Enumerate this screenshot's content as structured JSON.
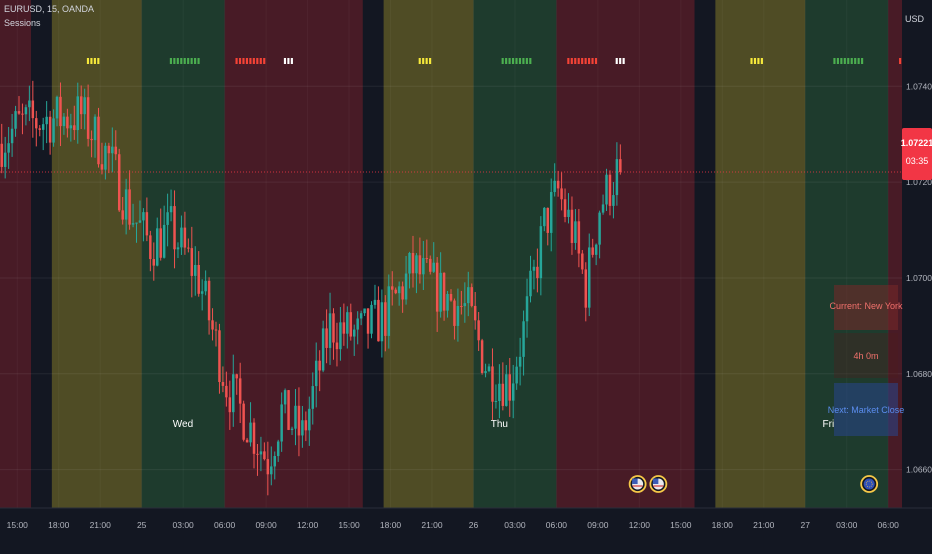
{
  "header": {
    "symbol_line": "EURUSD, 15, OANDA",
    "indicator": "Sessions"
  },
  "axis": {
    "currency": "USD"
  },
  "price_label": {
    "price": "1.07221",
    "countdown": "03:35"
  },
  "session_info": {
    "current": "Current: New York",
    "remaining": "4h 0m",
    "next": "Next: Market Close"
  },
  "day_labels": [
    {
      "text": "Wed"
    },
    {
      "text": "Thu"
    },
    {
      "text": "Fri"
    }
  ],
  "colors": {
    "background": "#131722",
    "bull": "#26a69a",
    "bear": "#ef5350",
    "asia": "#f7e93b",
    "london": "#4caf50",
    "newyork": "#f44336",
    "close": "#ffffff"
  },
  "chart_data": {
    "type": "candlestick",
    "ylim": [
      1.0652,
      1.0758
    ],
    "yticks": [
      {
        "value": 1.074,
        "label": "1.07400"
      },
      {
        "value": 1.072,
        "label": "1.07200"
      },
      {
        "value": 1.07,
        "label": "1.07000"
      },
      {
        "value": 1.068,
        "label": "1.06800"
      },
      {
        "value": 1.066,
        "label": "1.06600"
      }
    ],
    "xticks": [
      {
        "t": 3,
        "label": "15:00"
      },
      {
        "t": 15,
        "label": "18:00"
      },
      {
        "t": 27,
        "label": "21:00"
      },
      {
        "t": 39,
        "label": "25"
      },
      {
        "t": 51,
        "label": "03:00"
      },
      {
        "t": 63,
        "label": "06:00"
      },
      {
        "t": 75,
        "label": "09:00"
      },
      {
        "t": 87,
        "label": "12:00"
      },
      {
        "t": 99,
        "label": "15:00"
      },
      {
        "t": 111,
        "label": "18:00"
      },
      {
        "t": 123,
        "label": "21:00"
      },
      {
        "t": 135,
        "label": "26"
      },
      {
        "t": 147,
        "label": "03:00"
      },
      {
        "t": 159,
        "label": "06:00"
      },
      {
        "t": 171,
        "label": "09:00"
      },
      {
        "t": 183,
        "label": "12:00"
      },
      {
        "t": 195,
        "label": "15:00"
      },
      {
        "t": 207,
        "label": "18:00"
      },
      {
        "t": 219,
        "label": "21:00"
      },
      {
        "t": 231,
        "label": "27"
      },
      {
        "t": 243,
        "label": "03:00"
      },
      {
        "t": 255,
        "label": "06:00"
      }
    ],
    "time_range": [
      -2,
      259
    ],
    "sessions": [
      {
        "name": "newyork",
        "start": -2,
        "end": 7
      },
      {
        "name": "close",
        "start": 7,
        "end": 13
      },
      {
        "name": "asia",
        "start": 13,
        "end": 39
      },
      {
        "name": "london",
        "start": 39,
        "end": 63
      },
      {
        "name": "newyork",
        "start": 63,
        "end": 103
      },
      {
        "name": "close",
        "start": 103,
        "end": 109
      },
      {
        "name": "asia",
        "start": 109,
        "end": 135
      },
      {
        "name": "london",
        "start": 135,
        "end": 159
      },
      {
        "name": "newyork",
        "start": 159,
        "end": 199
      },
      {
        "name": "close",
        "start": 199,
        "end": 205
      },
      {
        "name": "asia",
        "start": 205,
        "end": 231
      },
      {
        "name": "london",
        "start": 231,
        "end": 255
      },
      {
        "name": "newyork",
        "start": 255,
        "end": 259
      }
    ],
    "waypoints": [
      {
        "t": -2,
        "p": 1.0728
      },
      {
        "t": 4,
        "p": 1.0732
      },
      {
        "t": 12,
        "p": 1.0733
      },
      {
        "t": 22,
        "p": 1.0734
      },
      {
        "t": 30,
        "p": 1.0725
      },
      {
        "t": 36,
        "p": 1.0714
      },
      {
        "t": 42,
        "p": 1.0707
      },
      {
        "t": 48,
        "p": 1.071
      },
      {
        "t": 56,
        "p": 1.07
      },
      {
        "t": 64,
        "p": 1.0678
      },
      {
        "t": 70,
        "p": 1.067
      },
      {
        "t": 76,
        "p": 1.0662
      },
      {
        "t": 80,
        "p": 1.0672
      },
      {
        "t": 86,
        "p": 1.0667
      },
      {
        "t": 94,
        "p": 1.069
      },
      {
        "t": 102,
        "p": 1.0688
      },
      {
        "t": 110,
        "p": 1.0692
      },
      {
        "t": 118,
        "p": 1.0702
      },
      {
        "t": 126,
        "p": 1.0697
      },
      {
        "t": 134,
        "p": 1.0693
      },
      {
        "t": 140,
        "p": 1.068
      },
      {
        "t": 146,
        "p": 1.0678
      },
      {
        "t": 150,
        "p": 1.0689
      },
      {
        "t": 156,
        "p": 1.0711
      },
      {
        "t": 160,
        "p": 1.0718
      },
      {
        "t": 164,
        "p": 1.071
      },
      {
        "t": 168,
        "p": 1.0698
      },
      {
        "t": 172,
        "p": 1.0715
      },
      {
        "t": 177,
        "p": 1.0722
      }
    ],
    "last_price": 1.07221,
    "session_markers": [
      {
        "session": "asia",
        "start": 23,
        "end": 27
      },
      {
        "session": "london",
        "start": 47,
        "end": 56
      },
      {
        "session": "newyork",
        "start": 66,
        "end": 75
      },
      {
        "session": "close",
        "start": 80,
        "end": 83
      },
      {
        "session": "asia",
        "start": 119,
        "end": 123
      },
      {
        "session": "london",
        "start": 143,
        "end": 152
      },
      {
        "session": "newyork",
        "start": 162,
        "end": 171
      },
      {
        "session": "close",
        "start": 176,
        "end": 179
      },
      {
        "session": "asia",
        "start": 215,
        "end": 219
      },
      {
        "session": "london",
        "start": 239,
        "end": 248
      },
      {
        "session": "newyork",
        "start": 258,
        "end": 259
      }
    ],
    "day_label_times": [
      48,
      140,
      236
    ],
    "event_flags": [
      {
        "t": 182,
        "type": "us"
      },
      {
        "t": 188,
        "type": "us"
      },
      {
        "t": 249,
        "type": "eu"
      }
    ]
  }
}
